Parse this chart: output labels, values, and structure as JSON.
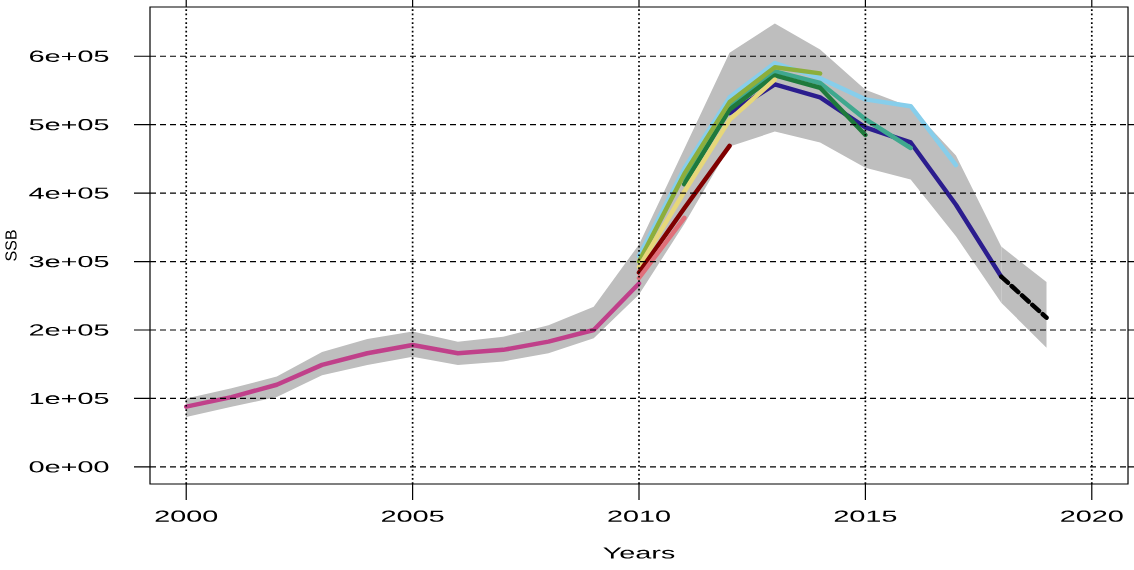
{
  "chart_data": {
    "type": "line",
    "xlabel": "Years",
    "ylabel": "SSB",
    "xlim": [
      1999.2,
      2020.8
    ],
    "ylim": [
      -25000,
      672000
    ],
    "xticks": [
      2000,
      2005,
      2010,
      2015,
      2020
    ],
    "yticks": [
      {
        "value": 0,
        "label": "0e+00"
      },
      {
        "value": 100000,
        "label": "1e+05"
      },
      {
        "value": 200000,
        "label": "2e+05"
      },
      {
        "value": 300000,
        "label": "3e+05"
      },
      {
        "value": 400000,
        "label": "4e+05"
      },
      {
        "value": 500000,
        "label": "5e+05"
      },
      {
        "value": 600000,
        "label": "6e+05"
      }
    ],
    "grid": true,
    "series": [
      {
        "color": "#2b1d8e",
        "x": [
          2000,
          2001,
          2002,
          2003,
          2004,
          2005,
          2006,
          2007,
          2008,
          2009,
          2010,
          2011,
          2012,
          2013,
          2014,
          2015,
          2016,
          2017,
          2018
        ],
        "values": [
          null,
          null,
          null,
          null,
          null,
          null,
          null,
          null,
          null,
          null,
          null,
          null,
          517000,
          559000,
          540000,
          496000,
          474000,
          383000,
          278000
        ],
        "lower": [
          73000,
          88000,
          102000,
          134000,
          149000,
          161000,
          149000,
          154000,
          166000,
          188000,
          252000,
          355000,
          468000,
          490000,
          474000,
          437000,
          420000,
          337000,
          240000
        ],
        "upper": [
          100000,
          115000,
          132000,
          168000,
          187000,
          198000,
          183000,
          190000,
          207000,
          234000,
          325000,
          465000,
          605000,
          648000,
          610000,
          551000,
          526000,
          455000,
          322000
        ]
      },
      {
        "color": "#000000",
        "line_style": "dashed",
        "x": [
          2018,
          2019
        ],
        "values": [
          278000,
          218000
        ],
        "lower": [
          240000,
          174000
        ],
        "upper": [
          322000,
          270000
        ]
      },
      {
        "color": "#87ceeb",
        "x": [
          2010,
          2011,
          2012,
          2013,
          2014,
          2015,
          2016,
          2017
        ],
        "values": [
          308000,
          436000,
          540000,
          590000,
          568000,
          537000,
          527000,
          441000
        ]
      },
      {
        "color": "#3fa88e",
        "x": [
          2011,
          2012,
          2013,
          2014,
          2015,
          2016
        ],
        "values": [
          420000,
          527000,
          578000,
          561000,
          508000,
          466000
        ]
      },
      {
        "color": "#1f7a3c",
        "x": [
          2011,
          2012,
          2013,
          2014,
          2015
        ],
        "values": [
          413000,
          522000,
          572000,
          554000,
          485000
        ]
      },
      {
        "color": "#8cae3c",
        "x": [
          2010,
          2011,
          2012,
          2013,
          2014
        ],
        "values": [
          300000,
          428000,
          533000,
          584000,
          575000
        ]
      },
      {
        "color": "#e6d77a",
        "x": [
          2010,
          2011,
          2012,
          2013
        ],
        "values": [
          292000,
          402000,
          507000,
          566000
        ]
      },
      {
        "color": "#800000",
        "x": [
          2010,
          2011,
          2012
        ],
        "values": [
          284000,
          378000,
          469000
        ]
      },
      {
        "color": "#e0707a",
        "x": [
          2010,
          2011
        ],
        "values": [
          276000,
          364000
        ]
      },
      {
        "color": "#c0408a",
        "x": [
          2000,
          2001,
          2002,
          2003,
          2004,
          2005,
          2006,
          2007,
          2008,
          2009,
          2010
        ],
        "values": [
          88000,
          102000,
          120000,
          149000,
          166000,
          178000,
          166000,
          171000,
          183000,
          200000,
          268000
        ]
      }
    ]
  }
}
